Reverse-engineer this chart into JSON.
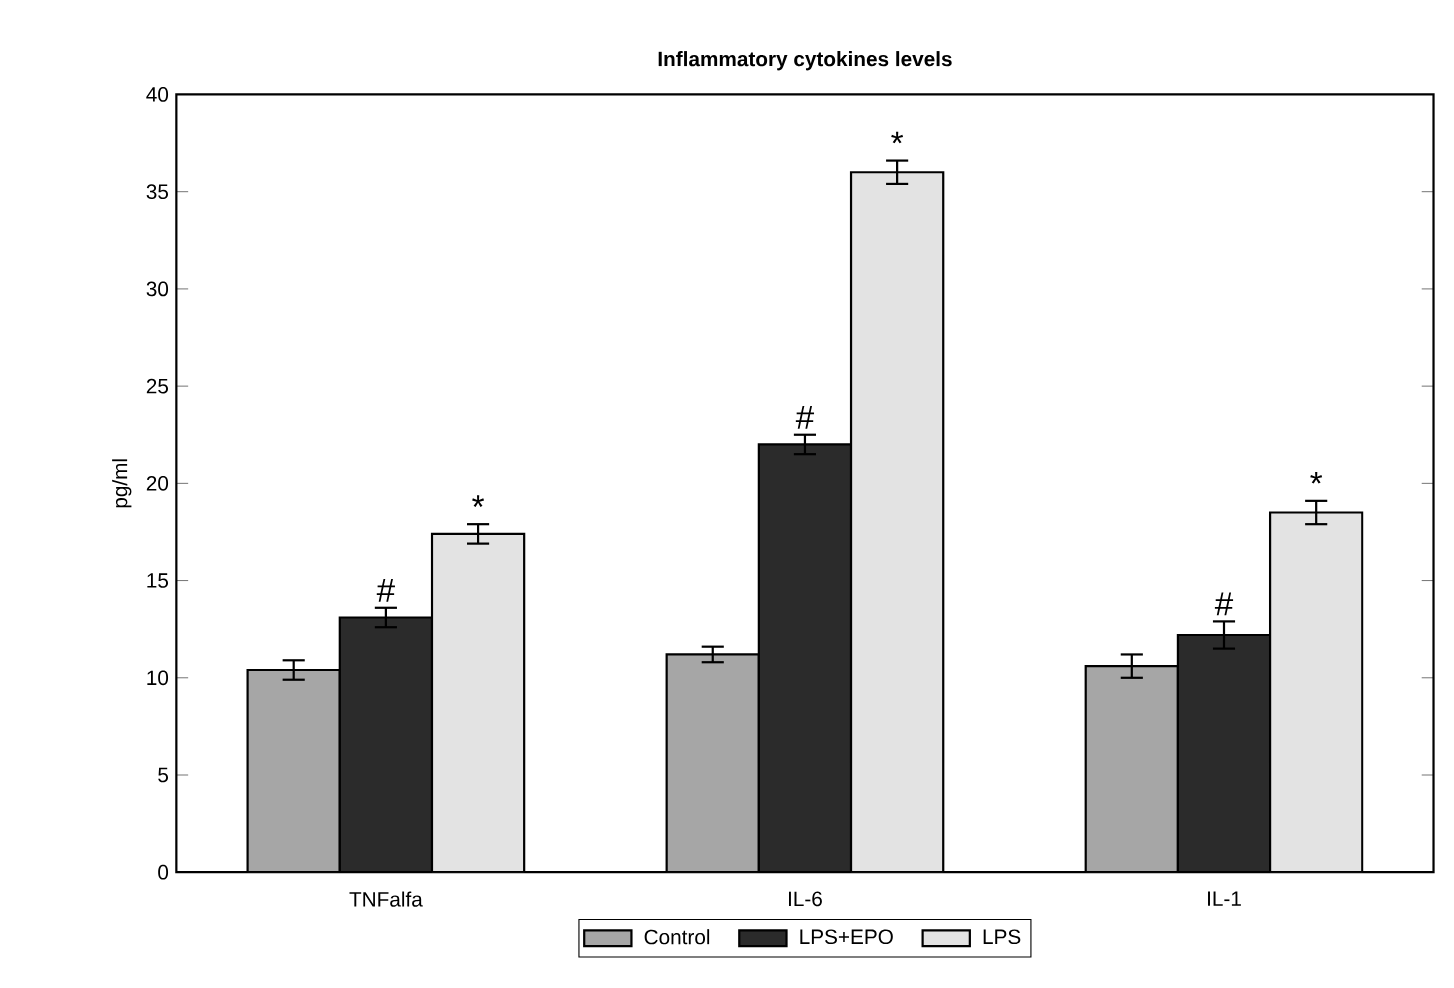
{
  "chart_data": {
    "type": "bar",
    "title": "Inflammatory cytokines levels",
    "ylabel": "pg/ml",
    "categories": [
      "TNFalfa",
      "IL-6",
      "IL-1"
    ],
    "series": [
      {
        "name": "Control",
        "color": "#a6a6a6",
        "values": [
          10.4,
          11.2,
          10.6
        ],
        "errors": [
          0.5,
          0.4,
          0.6
        ],
        "value_labels": [
          null,
          null,
          null
        ]
      },
      {
        "name": "LPS+EPO",
        "color": "#2b2b2b",
        "values": [
          13.1,
          22.0,
          12.2
        ],
        "errors": [
          0.5,
          0.5,
          0.7
        ],
        "value_labels": [
          "#",
          "#",
          "#"
        ]
      },
      {
        "name": "LPS",
        "color": "#e3e3e3",
        "values": [
          17.4,
          36.0,
          18.5
        ],
        "errors": [
          0.5,
          0.6,
          0.6
        ],
        "value_labels": [
          "*",
          "*",
          "*"
        ]
      }
    ],
    "ylim": [
      0,
      40
    ],
    "yticks": [
      0,
      5,
      10,
      15,
      20,
      25,
      30,
      35,
      40
    ],
    "grid": false,
    "legend": "bottom"
  }
}
